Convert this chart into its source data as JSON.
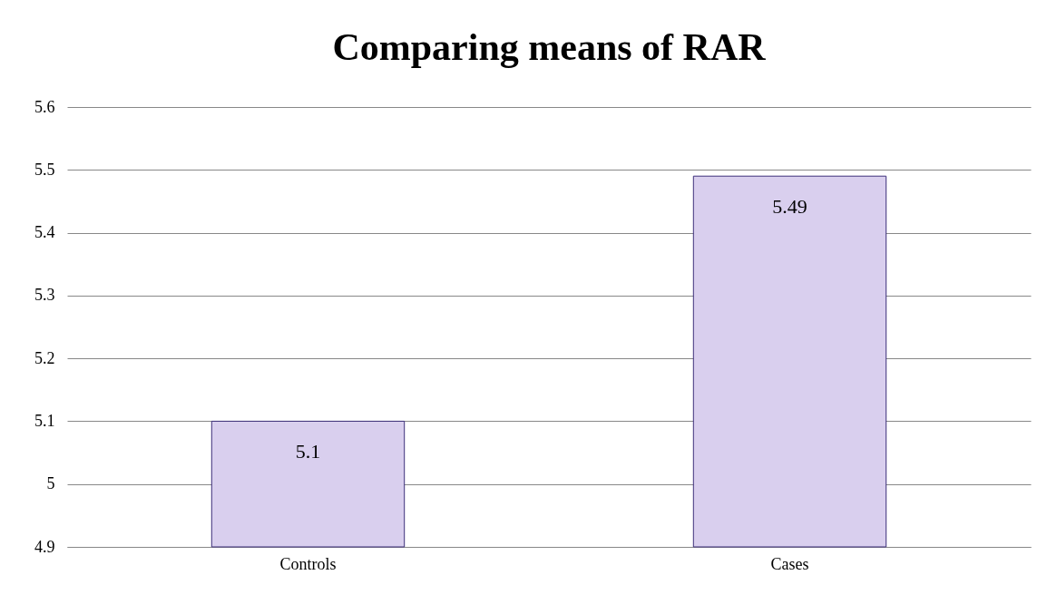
{
  "chart_data": {
    "type": "bar",
    "title": "Comparing means of RAR",
    "categories": [
      "Controls",
      "Cases"
    ],
    "values": [
      5.1,
      5.49
    ],
    "color": "#d9cfee",
    "ylim": [
      4.9,
      5.6
    ],
    "yticks": [
      4.9,
      5,
      5.1,
      5.2,
      5.3,
      5.4,
      5.5,
      5.6
    ],
    "grid": "y",
    "data_labels": true
  }
}
